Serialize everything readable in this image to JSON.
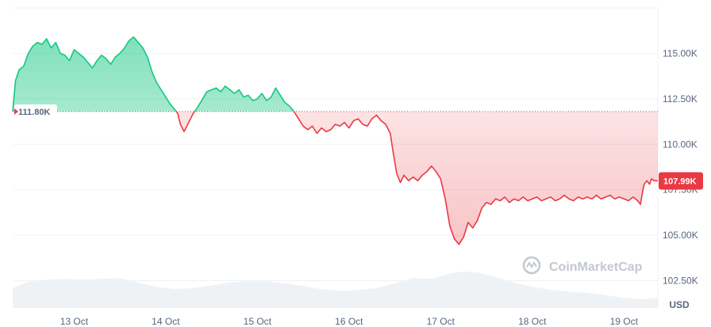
{
  "chart_data": {
    "type": "area",
    "ylim": [
      101000,
      117500
    ],
    "y_ticks": [
      {
        "value": 115000,
        "label": "115.00K"
      },
      {
        "value": 112500,
        "label": "112.50K"
      },
      {
        "value": 110000,
        "label": "110.00K"
      },
      {
        "value": 107500,
        "label": "107.50K"
      },
      {
        "value": 105000,
        "label": "105.00K"
      },
      {
        "value": 102500,
        "label": "102.50K"
      }
    ],
    "x_range": [
      12.33,
      19.37
    ],
    "x_ticks": [
      {
        "value": 13,
        "label": "13 Oct"
      },
      {
        "value": 14,
        "label": "14 Oct"
      },
      {
        "value": 15,
        "label": "15 Oct"
      },
      {
        "value": 16,
        "label": "16 Oct"
      },
      {
        "value": 17,
        "label": "17 Oct"
      },
      {
        "value": 18,
        "label": "18 Oct"
      },
      {
        "value": 19,
        "label": "19 Oct"
      }
    ],
    "baseline": {
      "value": 111800,
      "label": "111.80K"
    },
    "current": {
      "value": 107990,
      "label": "107.99K"
    },
    "currency_label": "USD",
    "watermark": "CoinMarketCap",
    "colors": {
      "up": "#16c784",
      "down": "#ea3943",
      "volume": "#eff2f5"
    },
    "series": [
      {
        "values": [
          [
            12.33,
            111800
          ],
          [
            12.36,
            113500
          ],
          [
            12.4,
            114100
          ],
          [
            12.45,
            114300
          ],
          [
            12.5,
            115000
          ],
          [
            12.55,
            115400
          ],
          [
            12.6,
            115600
          ],
          [
            12.65,
            115500
          ],
          [
            12.7,
            115800
          ],
          [
            12.75,
            115300
          ],
          [
            12.8,
            115600
          ],
          [
            12.85,
            115000
          ],
          [
            12.9,
            114900
          ],
          [
            12.95,
            114600
          ],
          [
            13.0,
            115200
          ],
          [
            13.05,
            115000
          ],
          [
            13.1,
            114800
          ],
          [
            13.15,
            114500
          ],
          [
            13.2,
            114200
          ],
          [
            13.25,
            114600
          ],
          [
            13.3,
            114900
          ],
          [
            13.35,
            114700
          ],
          [
            13.4,
            114400
          ],
          [
            13.45,
            114800
          ],
          [
            13.5,
            115000
          ],
          [
            13.55,
            115300
          ],
          [
            13.6,
            115700
          ],
          [
            13.65,
            115900
          ],
          [
            13.7,
            115600
          ],
          [
            13.75,
            115300
          ],
          [
            13.8,
            114800
          ],
          [
            13.85,
            114000
          ],
          [
            13.9,
            113400
          ],
          [
            13.95,
            113000
          ],
          [
            14.0,
            112600
          ],
          [
            14.05,
            112200
          ],
          [
            14.1,
            111900
          ],
          [
            14.13,
            111700
          ],
          [
            14.16,
            111100
          ],
          [
            14.2,
            110700
          ],
          [
            14.25,
            111200
          ],
          [
            14.3,
            111700
          ],
          [
            14.33,
            111900
          ],
          [
            14.38,
            112300
          ],
          [
            14.45,
            112900
          ],
          [
            14.5,
            113000
          ],
          [
            14.55,
            113100
          ],
          [
            14.6,
            112900
          ],
          [
            14.65,
            113200
          ],
          [
            14.7,
            113000
          ],
          [
            14.75,
            112800
          ],
          [
            14.8,
            113000
          ],
          [
            14.85,
            112600
          ],
          [
            14.9,
            112700
          ],
          [
            14.95,
            112400
          ],
          [
            15.0,
            112500
          ],
          [
            15.05,
            112800
          ],
          [
            15.1,
            112400
          ],
          [
            15.15,
            112600
          ],
          [
            15.2,
            113100
          ],
          [
            15.25,
            112700
          ],
          [
            15.3,
            112300
          ],
          [
            15.35,
            112100
          ],
          [
            15.4,
            111800
          ],
          [
            15.45,
            111400
          ],
          [
            15.5,
            111000
          ],
          [
            15.55,
            110800
          ],
          [
            15.6,
            111000
          ],
          [
            15.65,
            110600
          ],
          [
            15.7,
            110900
          ],
          [
            15.75,
            110700
          ],
          [
            15.8,
            110800
          ],
          [
            15.85,
            111100
          ],
          [
            15.9,
            111000
          ],
          [
            15.95,
            111200
          ],
          [
            16.0,
            110900
          ],
          [
            16.05,
            111300
          ],
          [
            16.1,
            111400
          ],
          [
            16.15,
            111100
          ],
          [
            16.2,
            111000
          ],
          [
            16.25,
            111400
          ],
          [
            16.3,
            111600
          ],
          [
            16.35,
            111300
          ],
          [
            16.4,
            111100
          ],
          [
            16.45,
            110600
          ],
          [
            16.48,
            109600
          ],
          [
            16.52,
            108400
          ],
          [
            16.56,
            107900
          ],
          [
            16.6,
            108300
          ],
          [
            16.65,
            108000
          ],
          [
            16.7,
            108200
          ],
          [
            16.75,
            108000
          ],
          [
            16.8,
            108300
          ],
          [
            16.85,
            108500
          ],
          [
            16.9,
            108800
          ],
          [
            16.95,
            108500
          ],
          [
            17.0,
            108100
          ],
          [
            17.05,
            107000
          ],
          [
            17.1,
            105500
          ],
          [
            17.15,
            104800
          ],
          [
            17.2,
            104500
          ],
          [
            17.25,
            104900
          ],
          [
            17.3,
            105700
          ],
          [
            17.35,
            105400
          ],
          [
            17.4,
            105800
          ],
          [
            17.45,
            106500
          ],
          [
            17.5,
            106800
          ],
          [
            17.55,
            106700
          ],
          [
            17.6,
            107000
          ],
          [
            17.65,
            106900
          ],
          [
            17.7,
            107100
          ],
          [
            17.75,
            106800
          ],
          [
            17.8,
            107000
          ],
          [
            17.85,
            106900
          ],
          [
            17.9,
            107100
          ],
          [
            17.95,
            106900
          ],
          [
            18.0,
            107000
          ],
          [
            18.05,
            107100
          ],
          [
            18.1,
            106900
          ],
          [
            18.15,
            107000
          ],
          [
            18.2,
            107100
          ],
          [
            18.25,
            106900
          ],
          [
            18.3,
            107000
          ],
          [
            18.35,
            107200
          ],
          [
            18.4,
            107000
          ],
          [
            18.45,
            106900
          ],
          [
            18.5,
            107100
          ],
          [
            18.55,
            107000
          ],
          [
            18.6,
            107100
          ],
          [
            18.65,
            107000
          ],
          [
            18.7,
            107200
          ],
          [
            18.75,
            107000
          ],
          [
            18.8,
            107100
          ],
          [
            18.85,
            107200
          ],
          [
            18.9,
            107000
          ],
          [
            18.95,
            107100
          ],
          [
            19.0,
            107000
          ],
          [
            19.05,
            106900
          ],
          [
            19.1,
            107100
          ],
          [
            19.15,
            106900
          ],
          [
            19.18,
            106700
          ],
          [
            19.2,
            107300
          ],
          [
            19.22,
            107800
          ],
          [
            19.25,
            108000
          ],
          [
            19.28,
            107800
          ],
          [
            19.3,
            108100
          ],
          [
            19.33,
            108000
          ],
          [
            19.37,
            107990
          ]
        ]
      }
    ],
    "volume": [
      [
        12.33,
        0.55
      ],
      [
        12.5,
        0.72
      ],
      [
        12.7,
        0.78
      ],
      [
        12.9,
        0.8
      ],
      [
        13.1,
        0.78
      ],
      [
        13.3,
        0.8
      ],
      [
        13.5,
        0.82
      ],
      [
        13.7,
        0.7
      ],
      [
        13.9,
        0.58
      ],
      [
        14.1,
        0.52
      ],
      [
        14.3,
        0.55
      ],
      [
        14.5,
        0.62
      ],
      [
        14.7,
        0.7
      ],
      [
        14.9,
        0.75
      ],
      [
        15.1,
        0.73
      ],
      [
        15.3,
        0.68
      ],
      [
        15.5,
        0.6
      ],
      [
        15.7,
        0.52
      ],
      [
        15.9,
        0.47
      ],
      [
        16.1,
        0.5
      ],
      [
        16.3,
        0.55
      ],
      [
        16.5,
        0.68
      ],
      [
        16.7,
        0.82
      ],
      [
        16.9,
        0.8
      ],
      [
        17.1,
        0.95
      ],
      [
        17.25,
        1.0
      ],
      [
        17.4,
        0.98
      ],
      [
        17.6,
        0.85
      ],
      [
        17.8,
        0.7
      ],
      [
        18.0,
        0.58
      ],
      [
        18.2,
        0.5
      ],
      [
        18.4,
        0.45
      ],
      [
        18.6,
        0.42
      ],
      [
        18.8,
        0.35
      ],
      [
        19.0,
        0.28
      ],
      [
        19.2,
        0.24
      ],
      [
        19.37,
        0.28
      ]
    ]
  }
}
